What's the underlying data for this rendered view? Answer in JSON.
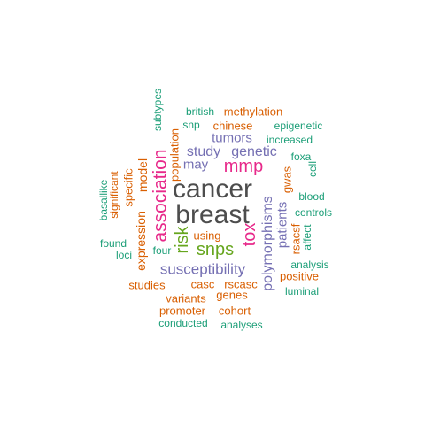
{
  "palette": {
    "teal": "#1b9e77",
    "orange": "#d95f02",
    "purple": "#7570b3",
    "magenta": "#e7298a",
    "green": "#66a61e",
    "gray": "#4d4d4d"
  },
  "words": [
    {
      "key": "cancer",
      "text": "cancer",
      "color": "gray"
    },
    {
      "key": "breast",
      "text": "breast",
      "color": "gray"
    },
    {
      "key": "association",
      "text": "association",
      "color": "magenta"
    },
    {
      "key": "mmp",
      "text": "mmp",
      "color": "magenta"
    },
    {
      "key": "tox",
      "text": "tox",
      "color": "magenta"
    },
    {
      "key": "risk",
      "text": "risk",
      "color": "green"
    },
    {
      "key": "snps",
      "text": "snps",
      "color": "green"
    },
    {
      "key": "susceptibility",
      "text": "susceptibility",
      "color": "purple"
    },
    {
      "key": "polymorphisms",
      "text": "polymorphisms",
      "color": "purple"
    },
    {
      "key": "genetic",
      "text": "genetic",
      "color": "purple"
    },
    {
      "key": "study",
      "text": "study",
      "color": "purple"
    },
    {
      "key": "tumors",
      "text": "tumors",
      "color": "purple"
    },
    {
      "key": "patients",
      "text": "patients",
      "color": "purple"
    },
    {
      "key": "may",
      "text": "may",
      "color": "purple"
    },
    {
      "key": "expression",
      "text": "expression",
      "color": "orange"
    },
    {
      "key": "model",
      "text": "model",
      "color": "orange"
    },
    {
      "key": "methylation",
      "text": "methylation",
      "color": "orange"
    },
    {
      "key": "chinese",
      "text": "chinese",
      "color": "orange"
    },
    {
      "key": "population",
      "text": "population",
      "color": "orange"
    },
    {
      "key": "specific",
      "text": "specific",
      "color": "orange"
    },
    {
      "key": "significant",
      "text": "significant",
      "color": "orange"
    },
    {
      "key": "using",
      "text": "using",
      "color": "orange"
    },
    {
      "key": "studies",
      "text": "studies",
      "color": "orange"
    },
    {
      "key": "casc",
      "text": "casc",
      "color": "orange"
    },
    {
      "key": "rscasc",
      "text": "rscasc",
      "color": "orange"
    },
    {
      "key": "variants",
      "text": "variants",
      "color": "orange"
    },
    {
      "key": "genes",
      "text": "genes",
      "color": "orange"
    },
    {
      "key": "promoter",
      "text": "promoter",
      "color": "orange"
    },
    {
      "key": "cohort",
      "text": "cohort",
      "color": "orange"
    },
    {
      "key": "rsacsf",
      "text": "rsacsf",
      "color": "orange"
    },
    {
      "key": "gwas",
      "text": "gwas",
      "color": "orange"
    },
    {
      "key": "positive",
      "text": "positive",
      "color": "orange"
    },
    {
      "key": "subtypes",
      "text": "subtypes",
      "color": "teal"
    },
    {
      "key": "british",
      "text": "british",
      "color": "teal"
    },
    {
      "key": "snp",
      "text": "snp",
      "color": "teal"
    },
    {
      "key": "epigenetic",
      "text": "epigenetic",
      "color": "teal"
    },
    {
      "key": "increased",
      "text": "increased",
      "color": "teal"
    },
    {
      "key": "foxa",
      "text": "foxa",
      "color": "teal"
    },
    {
      "key": "cell",
      "text": "cell",
      "color": "teal"
    },
    {
      "key": "blood",
      "text": "blood",
      "color": "teal"
    },
    {
      "key": "controls",
      "text": "controls",
      "color": "teal"
    },
    {
      "key": "affect",
      "text": "affect",
      "color": "teal"
    },
    {
      "key": "basallike",
      "text": "basallike",
      "color": "teal"
    },
    {
      "key": "found",
      "text": "found",
      "color": "teal"
    },
    {
      "key": "loci",
      "text": "loci",
      "color": "teal"
    },
    {
      "key": "four",
      "text": "four",
      "color": "teal"
    },
    {
      "key": "analysis",
      "text": "analysis",
      "color": "teal"
    },
    {
      "key": "luminal",
      "text": "luminal",
      "color": "teal"
    },
    {
      "key": "conducted",
      "text": "conducted",
      "color": "teal"
    },
    {
      "key": "analyses",
      "text": "analyses",
      "color": "teal"
    }
  ]
}
